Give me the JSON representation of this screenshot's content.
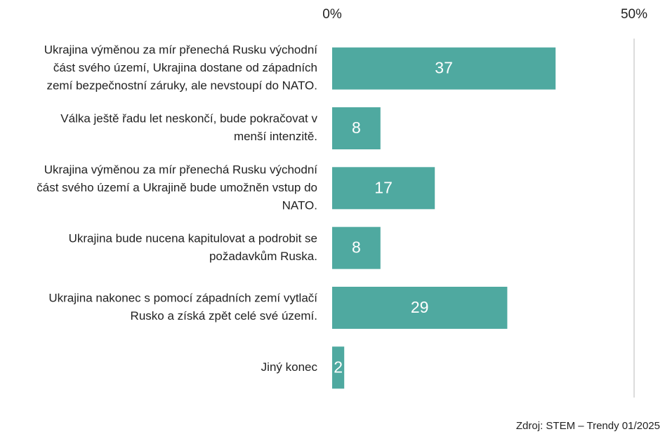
{
  "chart_data": {
    "type": "barh",
    "categories": [
      [
        "Ukrajina výměnou za mír přenechá Rusku východní",
        "část svého území, Ukrajina dostane od západních",
        "zemí bezpečnostní záruky, ale nevstoupí do NATO."
      ],
      [
        "Válka ještě řadu let neskončí, bude pokračovat v",
        "menší intenzitě."
      ],
      [
        "Ukrajina výměnou za mír přenechá Rusku východní",
        "část svého území a Ukrajině bude umožněn vstup do",
        "NATO."
      ],
      [
        "Ukrajina bude nucena kapitulovat a podrobit se",
        "požadavkům Ruska."
      ],
      [
        "Ukrajina nakonec s pomocí západních zemí vytlačí",
        "Rusko a získá zpět celé své území."
      ],
      [
        "Jiný konec"
      ]
    ],
    "values": [
      37,
      8,
      17,
      8,
      29,
      2
    ],
    "color": "#4fa9a0",
    "xlim": [
      0,
      50
    ],
    "xticks": [
      {
        "value": 0,
        "label": "0%"
      },
      {
        "value": 50,
        "label": "50%"
      }
    ],
    "grid": true,
    "source": "Zdroj: STEM – Trendy 01/2025"
  }
}
